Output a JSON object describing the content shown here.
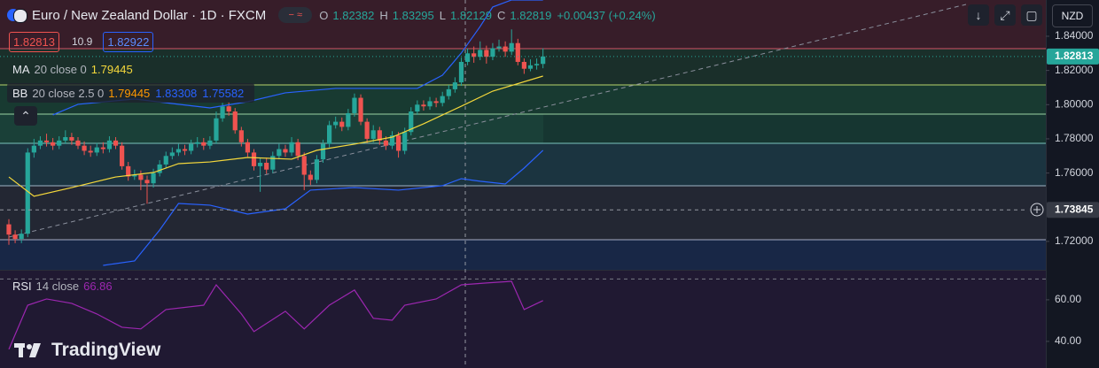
{
  "ui": {
    "branding": "TradingView",
    "currency": "NZD",
    "sell": 1.82813,
    "spread": 10.9,
    "buy": 1.82922
  },
  "chart_data": [
    {
      "type": "candlestick",
      "title": "Euro / New Zealand Dollar · 1D · FXCM",
      "ohlc_labels": [
        "O",
        "H",
        "L",
        "C"
      ],
      "change_label": "+0.00437 (+0.24%)",
      "up_color": "#26a69a",
      "down_color": "#ef5350",
      "open": [
        1.73,
        1.724,
        1.7215,
        1.7245,
        1.772,
        1.776,
        1.779,
        1.778,
        1.776,
        1.779,
        1.781,
        1.779,
        1.776,
        1.773,
        1.772,
        1.775,
        1.774,
        1.779,
        1.776,
        1.764,
        1.758,
        1.759,
        1.756,
        1.754,
        1.76,
        1.765,
        1.77,
        1.772,
        1.774,
        1.773,
        1.777,
        1.778,
        1.776,
        1.779,
        1.792,
        1.799,
        1.796,
        1.785,
        1.778,
        1.772,
        1.764,
        1.766,
        1.762,
        1.77,
        1.774,
        1.772,
        1.778,
        1.77,
        1.759,
        1.756,
        1.768,
        1.777,
        1.788,
        1.79,
        1.787,
        1.795,
        1.804,
        1.79,
        1.78,
        1.785,
        1.779,
        1.776,
        1.782,
        1.773,
        1.784,
        1.796,
        1.8,
        1.799,
        1.802,
        1.801,
        1.805,
        1.809,
        1.813,
        1.825,
        1.83,
        1.828,
        1.832,
        1.828,
        1.833,
        1.834,
        1.831,
        1.836,
        1.825,
        1.821,
        1.823,
        1.82382
      ],
      "high": [
        1.733,
        1.7265,
        1.727,
        1.7745,
        1.78,
        1.7815,
        1.783,
        1.7805,
        1.7815,
        1.785,
        1.7835,
        1.781,
        1.7785,
        1.776,
        1.7775,
        1.778,
        1.7815,
        1.781,
        1.778,
        1.7665,
        1.762,
        1.7615,
        1.7585,
        1.7625,
        1.7675,
        1.7725,
        1.775,
        1.777,
        1.7765,
        1.7795,
        1.781,
        1.7805,
        1.7815,
        1.796,
        1.801,
        1.8015,
        1.798,
        1.787,
        1.78,
        1.774,
        1.769,
        1.769,
        1.7725,
        1.777,
        1.7765,
        1.781,
        1.78,
        1.772,
        1.7615,
        1.7705,
        1.7795,
        1.7905,
        1.793,
        1.7925,
        1.7975,
        1.8065,
        1.806,
        1.792,
        1.788,
        1.787,
        1.7815,
        1.7845,
        1.784,
        1.7865,
        1.7985,
        1.8025,
        1.8025,
        1.8045,
        1.804,
        1.8075,
        1.8115,
        1.816,
        1.8275,
        1.833,
        1.834,
        1.837,
        1.8345,
        1.836,
        1.838,
        1.837,
        1.844,
        1.8385,
        1.827,
        1.8265,
        1.827,
        1.83295
      ],
      "low": [
        1.718,
        1.719,
        1.719,
        1.7225,
        1.769,
        1.774,
        1.7755,
        1.7735,
        1.774,
        1.777,
        1.7765,
        1.774,
        1.7705,
        1.7695,
        1.77,
        1.7715,
        1.772,
        1.774,
        1.762,
        1.7555,
        1.756,
        1.75,
        1.742,
        1.7515,
        1.758,
        1.763,
        1.768,
        1.77,
        1.7705,
        1.771,
        1.775,
        1.7735,
        1.774,
        1.777,
        1.79,
        1.7935,
        1.783,
        1.7755,
        1.7695,
        1.7615,
        1.749,
        1.7595,
        1.76,
        1.768,
        1.7695,
        1.77,
        1.7675,
        1.75,
        1.753,
        1.754,
        1.766,
        1.775,
        1.786,
        1.7845,
        1.785,
        1.793,
        1.788,
        1.7775,
        1.778,
        1.7765,
        1.7735,
        1.774,
        1.769,
        1.771,
        1.782,
        1.794,
        1.7965,
        1.797,
        1.7985,
        1.799,
        1.803,
        1.807,
        1.811,
        1.823,
        1.8245,
        1.826,
        1.824,
        1.826,
        1.831,
        1.828,
        1.829,
        1.823,
        1.818,
        1.8195,
        1.8205,
        1.82129
      ],
      "close": [
        1.724,
        1.7215,
        1.7245,
        1.772,
        1.776,
        1.779,
        1.778,
        1.776,
        1.779,
        1.781,
        1.779,
        1.776,
        1.773,
        1.772,
        1.775,
        1.774,
        1.779,
        1.776,
        1.764,
        1.758,
        1.759,
        1.756,
        1.754,
        1.76,
        1.765,
        1.77,
        1.772,
        1.774,
        1.773,
        1.777,
        1.778,
        1.776,
        1.779,
        1.792,
        1.799,
        1.796,
        1.785,
        1.778,
        1.772,
        1.764,
        1.766,
        1.762,
        1.77,
        1.774,
        1.772,
        1.778,
        1.77,
        1.759,
        1.756,
        1.768,
        1.777,
        1.788,
        1.79,
        1.787,
        1.795,
        1.804,
        1.79,
        1.78,
        1.785,
        1.779,
        1.776,
        1.782,
        1.773,
        1.784,
        1.796,
        1.8,
        1.799,
        1.802,
        1.801,
        1.805,
        1.809,
        1.813,
        1.825,
        1.83,
        1.828,
        1.832,
        1.828,
        1.833,
        1.834,
        1.831,
        1.836,
        1.825,
        1.821,
        1.823,
        1.82382,
        1.82819
      ],
      "last_price": 1.82813,
      "crosshair_price": 1.73845,
      "ylim": [
        1.7034,
        1.8612
      ],
      "yticks": [
        {
          "value": 1.72,
          "label": "1.72000"
        },
        {
          "value": 1.76,
          "label": "1.76000"
        },
        {
          "value": 1.78,
          "label": "1.78000"
        },
        {
          "value": 1.8,
          "label": "1.80000"
        },
        {
          "value": 1.82,
          "label": "1.82000"
        },
        {
          "value": 1.84,
          "label": "1.84000"
        }
      ],
      "indicators": [
        {
          "name": "MA",
          "params": "20 close 0",
          "readings": [
            1.79445
          ],
          "reading_colors": [
            "#f5d83b"
          ],
          "lines": [
            {
              "color": "#f5d83b",
              "x": [
                0,
                4,
                10,
                17,
                23,
                27,
                32,
                38,
                45,
                49,
                55,
                61,
                66,
                72,
                77,
                85
              ],
              "values": [
                1.7577,
                1.7464,
                1.7515,
                1.7577,
                1.7603,
                1.7655,
                1.7665,
                1.7691,
                1.7681,
                1.7733,
                1.7769,
                1.781,
                1.7888,
                1.7991,
                1.8079,
                1.8167
              ]
            }
          ]
        },
        {
          "name": "BB",
          "params": "20 close 2.5 0",
          "readings": [
            1.79445,
            1.83308,
            1.75582
          ],
          "reading_colors": [
            "#ff9800",
            "#2962ff",
            "#2962ff"
          ],
          "lines": [
            {
              "color": "#2962ff",
              "x": [
                7,
                11,
                20,
                27,
                32,
                38,
                44,
                52,
                58,
                65,
                69,
                72,
                75,
                77,
                80,
                85
              ],
              "values": [
                1.794,
                1.8002,
                1.8033,
                1.8002,
                1.7981,
                1.8017,
                1.8069,
                1.8095,
                1.8095,
                1.8095,
                1.8172,
                1.8302,
                1.8457,
                1.8571,
                1.8612,
                1.8612
              ]
            },
            {
              "color": "#2962ff",
              "x": [
                15,
                20,
                24,
                27,
                32,
                38,
                44,
                48,
                55,
                62,
                69,
                72,
                75,
                79,
                82,
                85
              ],
              "values": [
                1.706,
                1.7086,
                1.7267,
                1.7422,
                1.7412,
                1.736,
                1.7391,
                1.75,
                1.7515,
                1.75,
                1.7526,
                1.7567,
                1.7552,
                1.7536,
                1.7629,
                1.7733
              ]
            }
          ]
        }
      ]
    },
    {
      "type": "line",
      "title": "RSI",
      "params": "14 close",
      "reading": 66.86,
      "color": "#9c27b0",
      "x": [
        0,
        3,
        6,
        10,
        14,
        18,
        21,
        25,
        31,
        33,
        37,
        39,
        44,
        47,
        51,
        55,
        58,
        61,
        63,
        68,
        72,
        76,
        80,
        82,
        85
      ],
      "values": [
        36.2,
        57.4,
        60.4,
        58.3,
        53.2,
        46.8,
        46.0,
        55.3,
        57.4,
        67.2,
        53.2,
        44.7,
        54.5,
        46.0,
        57.4,
        64.7,
        51.1,
        50.2,
        57.4,
        60.4,
        67.2,
        68.1,
        68.9,
        55.3,
        59.6
      ],
      "band": 70,
      "ylim": [
        27.2,
        74
      ],
      "yticks": [
        {
          "value": 60,
          "label": "60.00"
        },
        {
          "value": 40,
          "label": "40.00"
        }
      ]
    }
  ]
}
